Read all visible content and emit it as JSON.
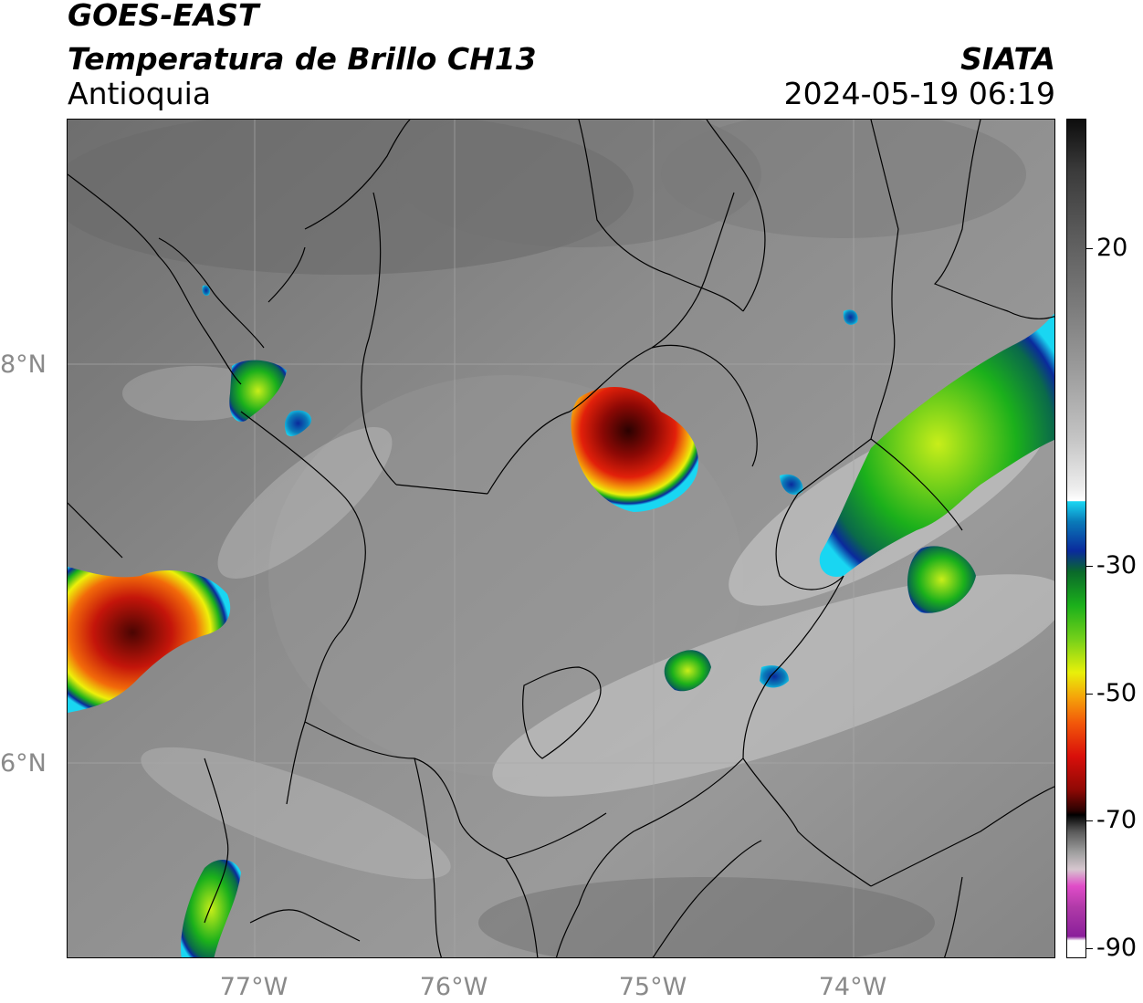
{
  "header": {
    "satellite": "GOES-EAST",
    "product": "Temperatura de Brillo CH13",
    "region": "Antioquia",
    "agency": "SIATA",
    "timestamp": "2024-05-19 06:19"
  },
  "map": {
    "lat_labels": [
      "8°N",
      "6°N"
    ],
    "lon_labels": [
      "77°W",
      "76°W",
      "75°W",
      "74°W"
    ]
  },
  "colorbar": {
    "tick_labels": [
      "20",
      "-30",
      "-50",
      "-70",
      "-90"
    ],
    "colors": {
      "white": "#ffffff",
      "cyan": "#19d6f2",
      "blue": "#0a2a9c",
      "green": "#1bb01b",
      "yellow": "#f6ef0a",
      "orange": "#f58a0a",
      "red": "#d90f0a",
      "darkred": "#5c0704",
      "black": "#000000",
      "magenta": "#e04cc8",
      "purple": "#8a1f9a"
    }
  }
}
